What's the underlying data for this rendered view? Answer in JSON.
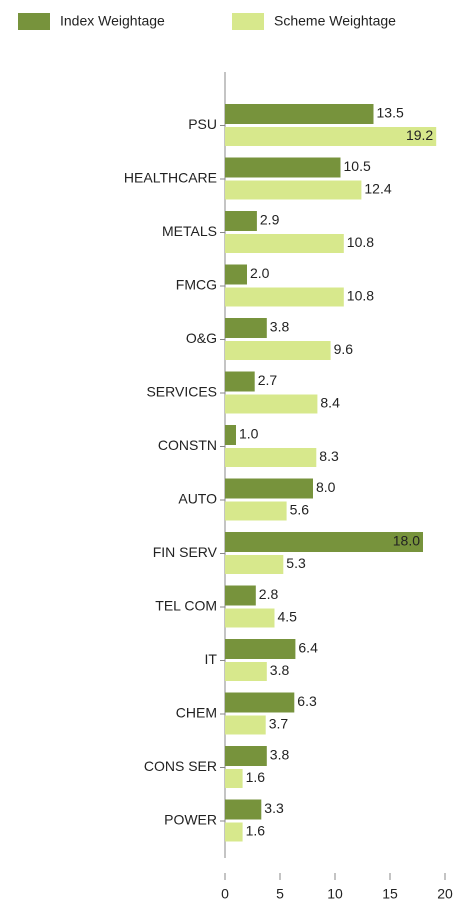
{
  "chart_data": {
    "type": "bar",
    "orientation": "horizontal",
    "categories": [
      "PSU",
      "HEALTHCARE",
      "METALS",
      "FMCG",
      "O&G",
      "SERVICES",
      "CONSTN",
      "AUTO",
      "FIN SERV",
      "TEL COM",
      "IT",
      "CHEM",
      "CONS SER",
      "POWER"
    ],
    "series": [
      {
        "name": "Index Weightage",
        "color": "#77933c",
        "values": [
          13.5,
          10.5,
          2.9,
          2.0,
          3.8,
          2.7,
          1.0,
          8.0,
          18.0,
          2.8,
          6.4,
          6.3,
          3.8,
          3.3
        ],
        "value_labels": [
          "13.5",
          "10.5",
          "2.9",
          "2.0",
          "3.8",
          "2.7",
          "1.0",
          "8.0",
          "18.0",
          "2.8",
          "6.4",
          "6.3",
          "3.8",
          "3.3"
        ]
      },
      {
        "name": "Scheme Weightage",
        "color": "#d7e88c",
        "values": [
          19.2,
          12.4,
          10.8,
          10.8,
          9.6,
          8.4,
          8.3,
          5.6,
          5.3,
          4.5,
          3.8,
          3.7,
          1.6,
          1.6
        ],
        "value_labels": [
          "19.2",
          "12.4",
          "10.8",
          "10.8",
          "9.6",
          "8.4",
          "8.3",
          "5.6",
          "5.3",
          "4.5",
          "3.8",
          "3.7",
          "1.6",
          "1.6"
        ]
      }
    ],
    "xlim": [
      0,
      20
    ],
    "xticks": [
      0,
      5,
      10,
      15,
      20
    ],
    "legend": "top",
    "grid": false
  }
}
